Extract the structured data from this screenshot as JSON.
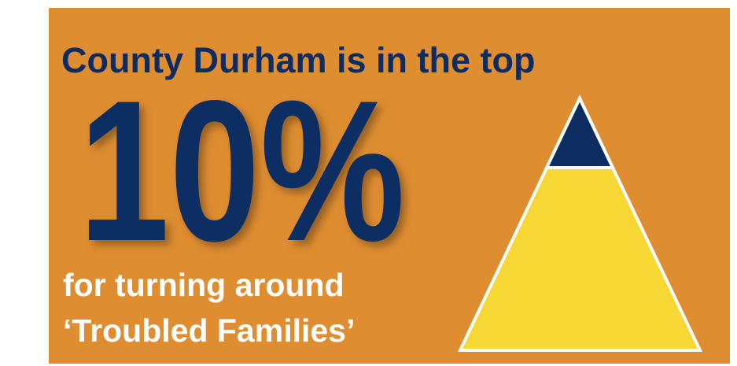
{
  "headline": "County Durham is in the top",
  "figure": "10%",
  "caption": {
    "line1": "for turning around",
    "line2": "‘Troubled Families’"
  }
}
